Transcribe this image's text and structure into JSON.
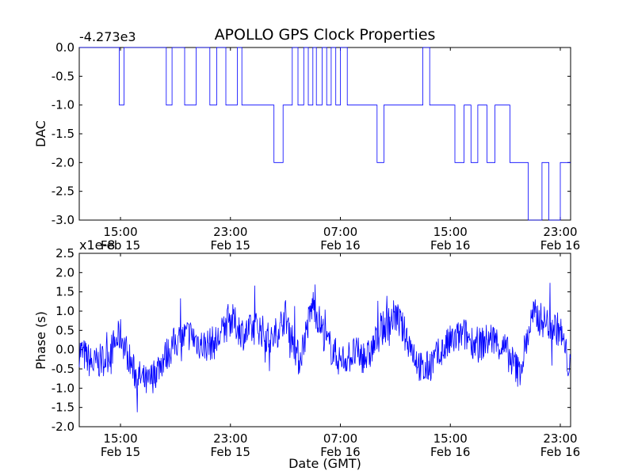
{
  "figure": {
    "title": "APOLLO GPS Clock Properties"
  },
  "chart_data": [
    {
      "type": "line",
      "ylabel": "DAC",
      "offset_label": "-4.273e3",
      "ylim": [
        -3.0,
        0.0
      ],
      "y_ticks": [
        0.0,
        -0.5,
        -1.0,
        -1.5,
        -2.0,
        -2.5,
        -3.0
      ],
      "y_tick_labels": [
        "0.0",
        "-0.5",
        "-1.0",
        "-1.5",
        "-2.0",
        "-2.5",
        "-3.0"
      ],
      "x_tick_labels": [
        {
          "time": "15:00",
          "date": "Feb 15"
        },
        {
          "time": "23:00",
          "date": "Feb 15"
        },
        {
          "time": "07:00",
          "date": "Feb 16"
        },
        {
          "time": "15:00",
          "date": "Feb 16"
        },
        {
          "time": "23:00",
          "date": "Feb 16"
        }
      ],
      "color": "#0000ff",
      "series": [
        {
          "x": [
            "Feb 15 12:00",
            "Feb 15 14:55",
            "Feb 15 15:15",
            "Feb 15 18:20",
            "Feb 15 18:45",
            "Feb 15 19:40",
            "Feb 15 20:30",
            "Feb 15 21:30",
            "Feb 15 22:00",
            "Feb 15 22:40",
            "Feb 15 23:30",
            "Feb 15 23:50",
            "Feb 16 00:50",
            "Feb 16 02:10",
            "Feb 16 02:50",
            "Feb 16 03:30",
            "Feb 16 03:55",
            "Feb 16 04:20",
            "Feb 16 04:40",
            "Feb 16 05:00",
            "Feb 16 05:15",
            "Feb 16 05:40",
            "Feb 16 06:00",
            "Feb 16 06:20",
            "Feb 16 06:40",
            "Feb 16 07:00",
            "Feb 16 07:30",
            "Feb 16 08:00",
            "Feb 16 08:40",
            "Feb 16 09:10",
            "Feb 16 09:40",
            "Feb 16 10:10",
            "Feb 16 10:30",
            "Feb 16 11:30",
            "Feb 16 12:30",
            "Feb 16 13:00",
            "Feb 16 13:30",
            "Feb 16 14:30",
            "Feb 16 15:00",
            "Feb 16 15:20",
            "Feb 16 16:00",
            "Feb 16 16:30",
            "Feb 16 17:00",
            "Feb 16 17:40",
            "Feb 16 18:15",
            "Feb 16 19:00",
            "Feb 16 19:20",
            "Feb 16 20:15",
            "Feb 16 20:40",
            "Feb 16 21:40",
            "Feb 16 22:10",
            "Feb 16 23:00",
            "Feb 16 23:45"
          ],
          "y": [
            0.0,
            -1.0,
            0.0,
            -1.0,
            0.0,
            -1.0,
            0.0,
            -1.0,
            0.0,
            -1.0,
            0.0,
            -1.0,
            -1.0,
            -2.0,
            -1.0,
            0.0,
            -1.0,
            0.0,
            -1.0,
            0.0,
            -1.0,
            0.0,
            -1.0,
            0.0,
            -1.0,
            0.0,
            -1.0,
            -1.0,
            -1.0,
            -1.0,
            -2.0,
            -1.0,
            -1.0,
            -1.0,
            -1.0,
            0.0,
            -1.0,
            -1.0,
            -1.0,
            -2.0,
            -1.0,
            -2.0,
            -1.0,
            -2.0,
            -1.0,
            -1.0,
            -2.0,
            -2.0,
            -3.0,
            -2.0,
            -3.0,
            -2.0,
            -2.0
          ]
        }
      ]
    },
    {
      "type": "line",
      "ylabel": "Phase (s)",
      "xlabel": "Date (GMT)",
      "offset_label": "x1e-8",
      "ylim": [
        -2.0,
        2.5
      ],
      "y_ticks": [
        2.5,
        2.0,
        1.5,
        1.0,
        0.5,
        0.0,
        -0.5,
        -1.0,
        -1.5,
        -2.0
      ],
      "y_tick_labels": [
        "2.5",
        "2.0",
        "1.5",
        "1.0",
        "0.5",
        "0.0",
        "-0.5",
        "-1.0",
        "-1.5",
        "-2.0"
      ],
      "x_tick_labels": [
        {
          "time": "15:00",
          "date": "Feb 15"
        },
        {
          "time": "23:00",
          "date": "Feb 15"
        },
        {
          "time": "07:00",
          "date": "Feb 16"
        },
        {
          "time": "15:00",
          "date": "Feb 16"
        },
        {
          "time": "23:00",
          "date": "Feb 16"
        }
      ],
      "color": "#0000ff",
      "series": [
        {
          "x": [
            "Feb 15 12:00",
            "Feb 15 13:00",
            "Feb 15 14:00",
            "Feb 15 15:00",
            "Feb 15 16:00",
            "Feb 15 17:00",
            "Feb 15 18:00",
            "Feb 15 19:00",
            "Feb 15 20:00",
            "Feb 15 21:00",
            "Feb 15 22:00",
            "Feb 15 23:00",
            "Feb 16 00:00",
            "Feb 16 01:00",
            "Feb 16 02:00",
            "Feb 16 03:00",
            "Feb 16 04:00",
            "Feb 16 05:00",
            "Feb 16 06:00",
            "Feb 16 07:00",
            "Feb 16 08:00",
            "Feb 16 09:00",
            "Feb 16 10:00",
            "Feb 16 11:00",
            "Feb 16 12:00",
            "Feb 16 13:00",
            "Feb 16 14:00",
            "Feb 16 15:00",
            "Feb 16 16:00",
            "Feb 16 17:00",
            "Feb 16 18:00",
            "Feb 16 19:00",
            "Feb 16 20:00",
            "Feb 16 21:00",
            "Feb 16 22:00",
            "Feb 16 23:00",
            "Feb 16 23:45"
          ],
          "y": [
            0.0,
            -0.4,
            -0.2,
            0.4,
            -0.6,
            -0.9,
            -0.3,
            0.2,
            0.4,
            0.1,
            0.2,
            0.8,
            0.4,
            0.6,
            0.2,
            0.9,
            -0.3,
            1.2,
            0.2,
            -0.3,
            -0.1,
            -0.2,
            0.5,
            0.9,
            0.2,
            -0.6,
            -0.2,
            0.2,
            0.4,
            0.1,
            0.3,
            0.0,
            -0.6,
            0.9,
            0.7,
            0.5,
            -0.6
          ]
        }
      ]
    }
  ]
}
